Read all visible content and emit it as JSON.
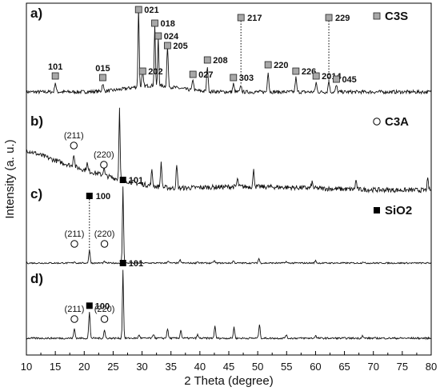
{
  "chart_data": {
    "type": "line",
    "xlabel": "2 Theta (degree)",
    "ylabel": "Intensity (a. u.)",
    "xlim": [
      10,
      80
    ],
    "x_ticks": [
      "10",
      "15",
      "20",
      "25",
      "30",
      "35",
      "40",
      "45",
      "50",
      "55",
      "60",
      "65",
      "70",
      "75",
      "80"
    ],
    "grid": false,
    "panels": [
      {
        "tag": "a)",
        "legend": {
          "marker": "grey-square",
          "text": "C3S"
        },
        "peaks": [
          {
            "x": 15.0,
            "h": 0.12,
            "label": "101",
            "marker": "grey-square"
          },
          {
            "x": 23.2,
            "h": 0.1,
            "label": "015",
            "marker": "grey-square"
          },
          {
            "x": 29.4,
            "h": 1.0,
            "label": "021",
            "marker": "grey-square"
          },
          {
            "x": 30.1,
            "h": 0.18,
            "label": "202",
            "marker": "grey-square"
          },
          {
            "x": 32.2,
            "h": 0.78,
            "label": "018",
            "marker": "grey-square"
          },
          {
            "x": 32.8,
            "h": 0.62,
            "label": "024",
            "marker": "grey-square"
          },
          {
            "x": 34.4,
            "h": 0.5,
            "label": "205",
            "marker": "grey-square"
          },
          {
            "x": 38.8,
            "h": 0.14,
            "label": "027",
            "marker": "grey-square"
          },
          {
            "x": 41.3,
            "h": 0.32,
            "label": "208",
            "marker": "grey-square"
          },
          {
            "x": 45.8,
            "h": 0.1,
            "label": "303",
            "marker": "grey-square"
          },
          {
            "x": 47.1,
            "h": 0.08,
            "label": "217",
            "marker": "grey-square",
            "dotted": true
          },
          {
            "x": 51.8,
            "h": 0.26,
            "label": "220",
            "marker": "grey-square"
          },
          {
            "x": 56.6,
            "h": 0.18,
            "label": "226",
            "marker": "grey-square"
          },
          {
            "x": 60.1,
            "h": 0.12,
            "label": "2014",
            "marker": "grey-square"
          },
          {
            "x": 62.3,
            "h": 0.14,
            "label": "229",
            "marker": "grey-square",
            "dotted": true
          },
          {
            "x": 63.6,
            "h": 0.08,
            "label": "045",
            "marker": "grey-square"
          }
        ]
      },
      {
        "tag": "b)",
        "legend": {
          "marker": "open-circle",
          "text": "C3A"
        },
        "peaks": [
          {
            "x": 18.2,
            "h": 0.18,
            "label": "(211)",
            "marker": "open-circle"
          },
          {
            "x": 20.5,
            "h": 0.1,
            "label": "",
            "marker": ""
          },
          {
            "x": 23.4,
            "h": 0.1,
            "label": "(220)",
            "marker": "open-circle"
          },
          {
            "x": 26.1,
            "h": 1.0,
            "label": "",
            "marker": ""
          },
          {
            "x": 31.7,
            "h": 0.2,
            "label": "",
            "marker": ""
          },
          {
            "x": 33.3,
            "h": 0.32,
            "label": "",
            "marker": ""
          },
          {
            "x": 36.0,
            "h": 0.3,
            "label": "",
            "marker": ""
          },
          {
            "x": 46.5,
            "h": 0.1,
            "label": "",
            "marker": ""
          },
          {
            "x": 49.3,
            "h": 0.22,
            "label": "",
            "marker": ""
          },
          {
            "x": 59.4,
            "h": 0.08,
            "label": "",
            "marker": ""
          },
          {
            "x": 67.0,
            "h": 0.12,
            "label": "",
            "marker": ""
          },
          {
            "x": 79.4,
            "h": 0.14,
            "label": "",
            "marker": ""
          }
        ]
      },
      {
        "tag": "c)",
        "legend": {
          "marker": "black-square",
          "text": "SiO2"
        },
        "peaks": [
          {
            "x": 18.3,
            "h": 0.02,
            "label": "(211)",
            "marker": "open-circle"
          },
          {
            "x": 20.9,
            "h": 0.17,
            "label": "100",
            "marker": "black-square",
            "dotted": true
          },
          {
            "x": 23.5,
            "h": 0.02,
            "label": "(220)",
            "marker": "open-circle"
          },
          {
            "x": 26.7,
            "h": 1.0,
            "label": "101",
            "marker": "black-square"
          },
          {
            "x": 34.5,
            "h": 0.03,
            "label": "",
            "marker": ""
          },
          {
            "x": 36.6,
            "h": 0.04,
            "label": "",
            "marker": ""
          },
          {
            "x": 39.6,
            "h": 0.02,
            "label": "",
            "marker": ""
          },
          {
            "x": 42.5,
            "h": 0.03,
            "label": "",
            "marker": ""
          },
          {
            "x": 45.8,
            "h": 0.03,
            "label": "",
            "marker": ""
          },
          {
            "x": 50.2,
            "h": 0.06,
            "label": "",
            "marker": ""
          },
          {
            "x": 54.9,
            "h": 0.02,
            "label": "",
            "marker": ""
          },
          {
            "x": 60.0,
            "h": 0.03,
            "label": "",
            "marker": ""
          },
          {
            "x": 68.2,
            "h": 0.02,
            "label": "",
            "marker": ""
          }
        ]
      },
      {
        "tag": "d)",
        "legend": null,
        "peaks": [
          {
            "x": 18.3,
            "h": 0.14,
            "label": "(211)",
            "marker": "open-circle"
          },
          {
            "x": 20.9,
            "h": 0.38,
            "label": "100",
            "marker": "black-square"
          },
          {
            "x": 23.5,
            "h": 0.12,
            "label": "(220)",
            "marker": "open-circle"
          },
          {
            "x": 26.7,
            "h": 1.0,
            "label": "101",
            "marker": "black-square"
          },
          {
            "x": 29.5,
            "h": 0.05,
            "label": "",
            "marker": ""
          },
          {
            "x": 32.0,
            "h": 0.06,
            "label": "",
            "marker": ""
          },
          {
            "x": 34.4,
            "h": 0.14,
            "label": "",
            "marker": ""
          },
          {
            "x": 36.7,
            "h": 0.12,
            "label": "",
            "marker": ""
          },
          {
            "x": 39.6,
            "h": 0.05,
            "label": "",
            "marker": ""
          },
          {
            "x": 42.6,
            "h": 0.17,
            "label": "",
            "marker": ""
          },
          {
            "x": 45.9,
            "h": 0.16,
            "label": "",
            "marker": ""
          },
          {
            "x": 50.3,
            "h": 0.2,
            "label": "",
            "marker": ""
          },
          {
            "x": 54.9,
            "h": 0.05,
            "label": "",
            "marker": ""
          },
          {
            "x": 60.0,
            "h": 0.04,
            "label": "",
            "marker": ""
          },
          {
            "x": 68.1,
            "h": 0.04,
            "label": "",
            "marker": ""
          }
        ]
      }
    ]
  }
}
